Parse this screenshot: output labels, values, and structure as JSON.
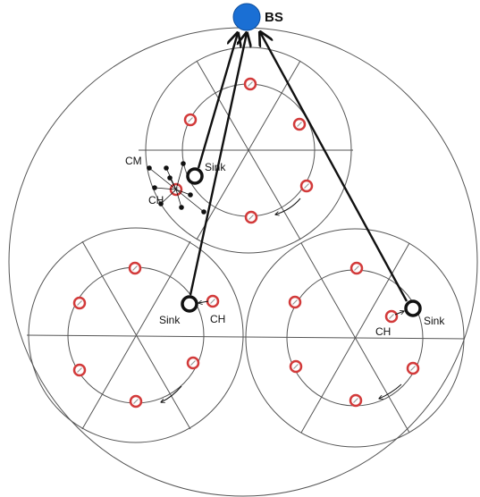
{
  "labels": {
    "bs": "BS",
    "sink": "Sink",
    "ch": "CH",
    "cm": "CM"
  },
  "colors": {
    "bs_fill": "#1a6fd4",
    "node_ring": "#d23a3a",
    "sink_ring": "#111111",
    "line": "#111111"
  }
}
